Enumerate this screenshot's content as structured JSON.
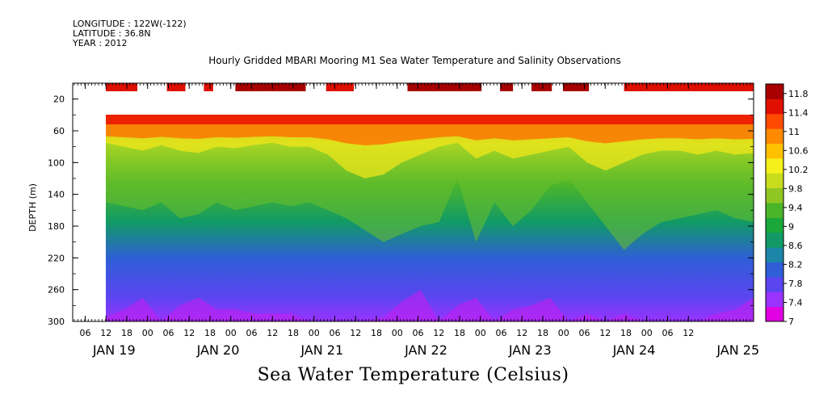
{
  "header": {
    "longitude": "LONGITUDE : 122W(-122)",
    "latitude": "LATITUDE : 36.8N",
    "year": "YEAR : 2012"
  },
  "chart_data": {
    "type": "heatmap",
    "title": "Hourly Gridded MBARI Mooring M1 Sea Water Temperature and Salinity Observations",
    "xlabel": "Sea Water Temperature (Celsius)",
    "ylabel": "DEPTH (m)",
    "x_hour_ticks": [
      "06",
      "12",
      "18",
      "00",
      "06",
      "12",
      "18",
      "00",
      "06",
      "12",
      "18",
      "00",
      "06",
      "12",
      "18",
      "00",
      "06",
      "12",
      "18",
      "00",
      "06",
      "12",
      "18",
      "00",
      "06",
      "12",
      "18",
      "00",
      "06",
      "12"
    ],
    "x_day_labels": [
      "JAN 19",
      "JAN 20",
      "JAN 21",
      "JAN 22",
      "JAN 23",
      "JAN 24",
      "JAN 25"
    ],
    "y_tick_labels": [
      "20",
      "60",
      "100",
      "140",
      "180",
      "220",
      "260",
      "300"
    ],
    "ylim": [
      0,
      300
    ],
    "y_reversed": true,
    "colorbar": {
      "labels": [
        "11.8",
        "11.4",
        "11",
        "10.6",
        "10.2",
        "9.8",
        "9.4",
        "9",
        "8.6",
        "8.2",
        "7.8",
        "7.4",
        "7"
      ],
      "range": [
        7,
        12
      ],
      "colors": [
        "#e000e0",
        "#9a33ff",
        "#5a45f0",
        "#2f5ed8",
        "#1c86a8",
        "#119a66",
        "#1aa83a",
        "#4bb52a",
        "#8fc622",
        "#c8dc1e",
        "#f5f01a",
        "#ffc000",
        "#ff8a00",
        "#ff4a00",
        "#e01000",
        "#a80000"
      ]
    },
    "surface_temperature_bars": [
      {
        "x0": 0.0,
        "x1": 1.7,
        "value": 11.4
      },
      {
        "x0": 3.3,
        "x1": 4.3,
        "value": 11.4
      },
      {
        "x0": 5.3,
        "x1": 5.8,
        "value": 11.4
      },
      {
        "x0": 7.0,
        "x1": 10.8,
        "value": 11.8
      },
      {
        "x0": 11.9,
        "x1": 13.4,
        "value": 11.6
      },
      {
        "x0": 16.3,
        "x1": 20.3,
        "value": 11.7
      },
      {
        "x0": 21.3,
        "x1": 22.0,
        "value": 11.8
      },
      {
        "x0": 23.0,
        "x1": 24.1,
        "value": 11.8
      },
      {
        "x0": 24.7,
        "x1": 26.1,
        "value": 11.8
      },
      {
        "x0": 28.0,
        "x1": 35.0,
        "value": 11.4
      }
    ],
    "time_series": {
      "t": [
        0,
        1,
        2,
        3,
        4,
        5,
        6,
        7,
        8,
        9,
        10,
        11,
        12,
        13,
        14,
        15,
        16,
        17,
        18,
        19,
        20,
        21,
        22,
        23,
        24,
        25,
        26,
        27,
        28,
        29,
        30,
        31,
        32,
        33,
        34,
        35
      ],
      "isotherm_9_depth": [
        150,
        155,
        160,
        150,
        170,
        165,
        150,
        160,
        155,
        150,
        155,
        150,
        160,
        170,
        185,
        200,
        190,
        180,
        175,
        120,
        200,
        150,
        180,
        160,
        130,
        120,
        150,
        180,
        210,
        190,
        175,
        170,
        165,
        160,
        170,
        175
      ],
      "isotherm_10_depth": [
        75,
        80,
        85,
        78,
        85,
        88,
        80,
        82,
        78,
        75,
        80,
        80,
        90,
        110,
        120,
        115,
        100,
        90,
        80,
        75,
        95,
        85,
        95,
        90,
        85,
        80,
        100,
        110,
        100,
        90,
        85,
        85,
        90,
        85,
        90,
        88
      ],
      "bottom_cold_7_5_depth": [
        295,
        285,
        270,
        300,
        280,
        270,
        285,
        285,
        290,
        290,
        290,
        300,
        300,
        300,
        300,
        295,
        275,
        260,
        300,
        280,
        270,
        300,
        285,
        280,
        270,
        300,
        290,
        300,
        290,
        300,
        300,
        300,
        300,
        290,
        285,
        270
      ]
    }
  }
}
